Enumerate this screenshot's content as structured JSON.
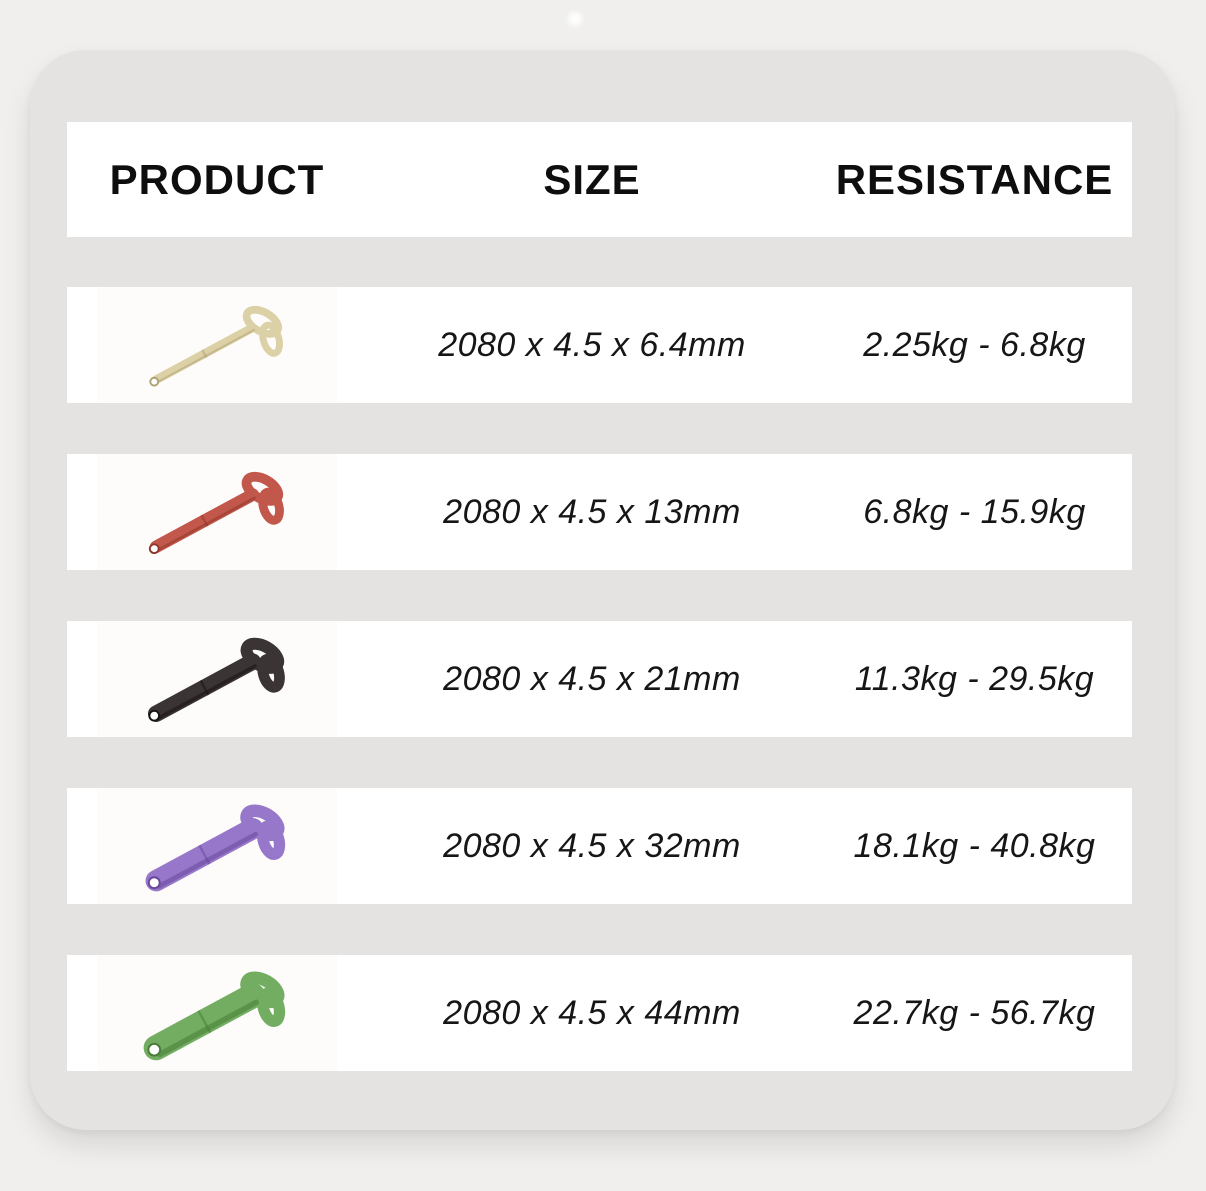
{
  "page": {
    "background_color": "#f0efee",
    "card_color": "#e4e3e2",
    "row_color": "#ffffff",
    "text_color": "#111111",
    "decoration": "white-dot"
  },
  "table": {
    "headers": [
      "PRODUCT",
      "SIZE",
      "RESISTANCE"
    ],
    "rows": [
      {
        "product": "beige-resistance-band",
        "size": "2080 x 4.5 x 6.4mm",
        "resistance": "2.25kg - 6.8kg",
        "band_color": "#dcd1a6",
        "band_color_dark": "#b1a273",
        "thickness": 9
      },
      {
        "product": "red-resistance-band",
        "size": "2080 x 4.5 x 13mm",
        "resistance": "6.8kg - 15.9kg",
        "band_color": "#c2584b",
        "band_color_dark": "#91362c",
        "thickness": 13
      },
      {
        "product": "black-resistance-band",
        "size": "2080 x 4.5 x 21mm",
        "resistance": "11.3kg - 29.5kg",
        "band_color": "#3b3434",
        "band_color_dark": "#171212",
        "thickness": 17
      },
      {
        "product": "purple-resistance-band",
        "size": "2080 x 4.5 x 32mm",
        "resistance": "18.1kg - 40.8kg",
        "band_color": "#9677ca",
        "band_color_dark": "#67489b",
        "thickness": 22
      },
      {
        "product": "green-resistance-band",
        "size": "2080 x 4.5 x 44mm",
        "resistance": "22.7kg - 56.7kg",
        "band_color": "#73ad62",
        "band_color_dark": "#477c38",
        "thickness": 26
      }
    ]
  }
}
